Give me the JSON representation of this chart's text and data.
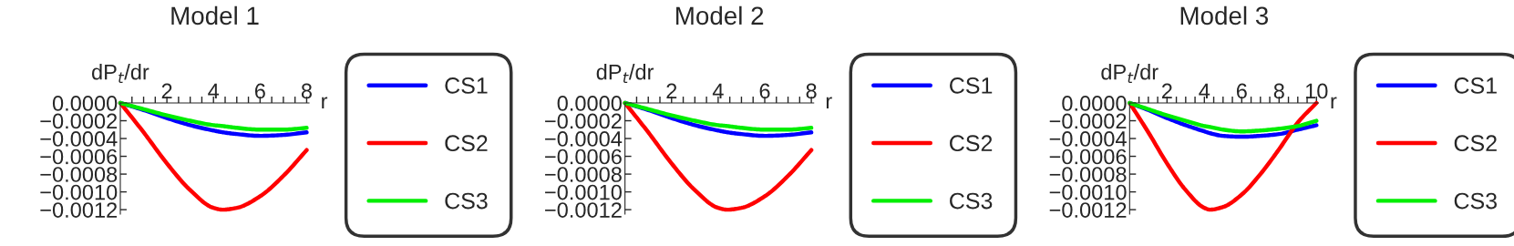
{
  "chart_data": [
    {
      "type": "line",
      "title": "Model 1",
      "xlabel": "r",
      "ylabel": "dP$_{t}$/dr",
      "legend": "right",
      "grid": false,
      "marker": "none",
      "line_style": "solid",
      "xlim": [
        0,
        8.1
      ],
      "ylim": [
        -0.00125,
        0
      ],
      "xticks": [
        {
          "value": 0.5,
          "label": null
        },
        {
          "value": 1,
          "label": null
        },
        {
          "value": 1.5,
          "label": null
        },
        2,
        {
          "value": 2.5,
          "label": null
        },
        {
          "value": 3,
          "label": null
        },
        {
          "value": 3.5,
          "label": null
        },
        4,
        {
          "value": 4.5,
          "label": null
        },
        {
          "value": 5,
          "label": null
        },
        {
          "value": 5.5,
          "label": null
        },
        6,
        {
          "value": 6.5,
          "label": null
        },
        {
          "value": 7,
          "label": null
        },
        {
          "value": 7.5,
          "label": null
        },
        8
      ],
      "yticks": [
        {
          "value": 0,
          "label": "0.0000"
        },
        {
          "value": -0.0002,
          "label": "−0.0002"
        },
        {
          "value": -0.0004,
          "label": "−0.0004"
        },
        {
          "value": -0.0006,
          "label": "−0.0006"
        },
        {
          "value": -0.0008,
          "label": "−0.0008"
        },
        {
          "value": -0.001,
          "label": "−0.0010"
        },
        {
          "value": -0.0012,
          "label": "−0.0012"
        }
      ],
      "x": [
        0,
        1,
        2,
        3,
        4,
        4.4,
        5,
        6,
        7,
        8
      ],
      "series": [
        {
          "name": "CS1",
          "color": "#0000ff",
          "values": [
            0,
            -8e-05,
            -0.00017,
            -0.00025,
            -0.00031,
            -0.00033,
            -0.00035,
            -0.00037,
            -0.00036,
            -0.00033
          ]
        },
        {
          "name": "CS2",
          "color": "#ff0000",
          "values": [
            0,
            -0.00033,
            -0.00068,
            -0.00098,
            -0.00118,
            -0.0012,
            -0.00118,
            -0.00105,
            -0.00082,
            -0.00053
          ]
        },
        {
          "name": "CS3",
          "color": "#00ee00",
          "values": [
            0,
            -7e-05,
            -0.00014,
            -0.0002,
            -0.00025,
            -0.00026,
            -0.00028,
            -0.0003,
            -0.0003,
            -0.00028
          ]
        }
      ]
    },
    {
      "type": "line",
      "title": "Model 2",
      "xlabel": "r",
      "ylabel": "dP$_{t}$/dr",
      "legend": "right",
      "grid": false,
      "marker": "none",
      "line_style": "solid",
      "xlim": [
        0,
        8.1
      ],
      "ylim": [
        -0.00125,
        0
      ],
      "xticks": [
        {
          "value": 0.5,
          "label": null
        },
        {
          "value": 1,
          "label": null
        },
        {
          "value": 1.5,
          "label": null
        },
        2,
        {
          "value": 2.5,
          "label": null
        },
        {
          "value": 3,
          "label": null
        },
        {
          "value": 3.5,
          "label": null
        },
        4,
        {
          "value": 4.5,
          "label": null
        },
        {
          "value": 5,
          "label": null
        },
        {
          "value": 5.5,
          "label": null
        },
        6,
        {
          "value": 6.5,
          "label": null
        },
        {
          "value": 7,
          "label": null
        },
        {
          "value": 7.5,
          "label": null
        },
        8
      ],
      "yticks": [
        {
          "value": 0,
          "label": "0.0000"
        },
        {
          "value": -0.0002,
          "label": "−0.0002"
        },
        {
          "value": -0.0004,
          "label": "−0.0004"
        },
        {
          "value": -0.0006,
          "label": "−0.0006"
        },
        {
          "value": -0.0008,
          "label": "−0.0008"
        },
        {
          "value": -0.001,
          "label": "−0.0010"
        },
        {
          "value": -0.0012,
          "label": "−0.0012"
        }
      ],
      "x": [
        0,
        1,
        2,
        3,
        4,
        4.4,
        5,
        6,
        7,
        8
      ],
      "series": [
        {
          "name": "CS1",
          "color": "#0000ff",
          "values": [
            0,
            -8e-05,
            -0.00017,
            -0.00025,
            -0.00031,
            -0.00033,
            -0.00035,
            -0.00037,
            -0.00036,
            -0.00033
          ]
        },
        {
          "name": "CS2",
          "color": "#ff0000",
          "values": [
            0,
            -0.00033,
            -0.00068,
            -0.00098,
            -0.00118,
            -0.0012,
            -0.00118,
            -0.00105,
            -0.00082,
            -0.00053
          ]
        },
        {
          "name": "CS3",
          "color": "#00ee00",
          "values": [
            0,
            -7e-05,
            -0.00014,
            -0.0002,
            -0.00025,
            -0.00026,
            -0.00028,
            -0.0003,
            -0.0003,
            -0.00028
          ]
        }
      ]
    },
    {
      "type": "line",
      "title": "Model 3",
      "xlabel": "r",
      "ylabel": "dP$_{t}$/dr",
      "legend": "right",
      "grid": false,
      "marker": "none",
      "line_style": "solid",
      "xlim": [
        0,
        10.1
      ],
      "ylim": [
        -0.00125,
        0
      ],
      "xticks": [
        {
          "value": 0.5,
          "label": null
        },
        {
          "value": 1,
          "label": null
        },
        {
          "value": 1.5,
          "label": null
        },
        2,
        {
          "value": 2.5,
          "label": null
        },
        {
          "value": 3,
          "label": null
        },
        {
          "value": 3.5,
          "label": null
        },
        4,
        {
          "value": 4.5,
          "label": null
        },
        {
          "value": 5,
          "label": null
        },
        {
          "value": 5.5,
          "label": null
        },
        6,
        {
          "value": 6.5,
          "label": null
        },
        {
          "value": 7,
          "label": null
        },
        {
          "value": 7.5,
          "label": null
        },
        8,
        {
          "value": 8.5,
          "label": null
        },
        {
          "value": 9,
          "label": null
        },
        {
          "value": 9.5,
          "label": null
        },
        10
      ],
      "yticks": [
        {
          "value": 0,
          "label": "0.0000"
        },
        {
          "value": -0.0002,
          "label": "−0.0002"
        },
        {
          "value": -0.0004,
          "label": "−0.0004"
        },
        {
          "value": -0.0006,
          "label": "−0.0006"
        },
        {
          "value": -0.0008,
          "label": "−0.0008"
        },
        {
          "value": -0.001,
          "label": "−0.0010"
        },
        {
          "value": -0.0012,
          "label": "−0.0012"
        }
      ],
      "x": [
        0,
        1,
        2,
        3,
        4,
        4.3,
        5,
        6,
        7,
        8,
        9,
        10
      ],
      "series": [
        {
          "name": "CS1",
          "color": "#0000ff",
          "values": [
            0,
            -8e-05,
            -0.00017,
            -0.00025,
            -0.00032,
            -0.00034,
            -0.00037,
            -0.00038,
            -0.00037,
            -0.00035,
            -0.0003,
            -0.00025
          ]
        },
        {
          "name": "CS2",
          "color": "#ff0000",
          "values": [
            0,
            -0.00033,
            -0.00068,
            -0.00098,
            -0.00118,
            -0.0012,
            -0.00117,
            -0.00103,
            -0.0008,
            -0.00052,
            -0.00022,
            0
          ]
        },
        {
          "name": "CS3",
          "color": "#00ee00",
          "values": [
            0,
            -7e-05,
            -0.00014,
            -0.0002,
            -0.00026,
            -0.00027,
            -0.0003,
            -0.00032,
            -0.00031,
            -0.00029,
            -0.00026,
            -0.0002
          ]
        }
      ]
    }
  ]
}
